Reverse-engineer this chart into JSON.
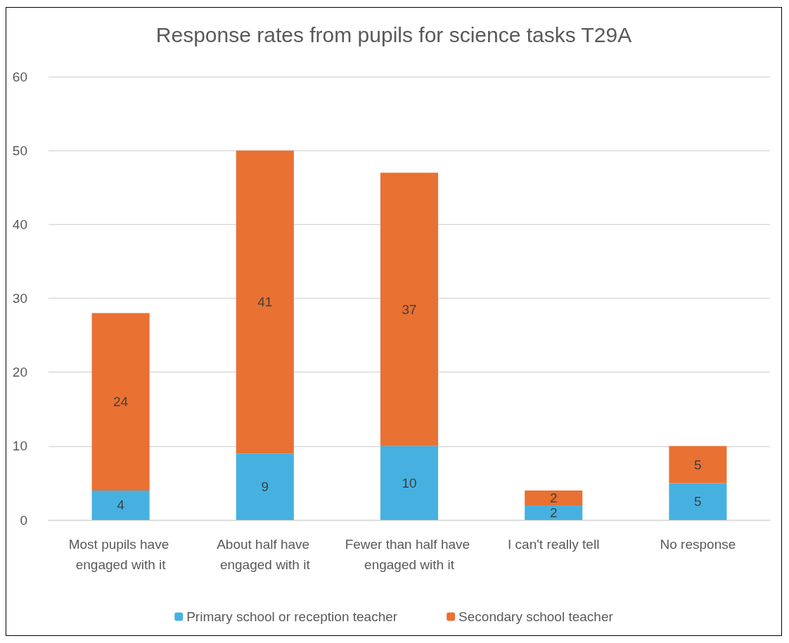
{
  "chart_data": {
    "type": "bar",
    "title": "Response rates from pupils for science tasks T29A",
    "categories": [
      "Most pupils have engaged with it",
      "About half have engaged with it",
      "Fewer than half have engaged with it",
      "I can't really tell",
      "No response"
    ],
    "series": [
      {
        "name": "Primary school or reception teacher",
        "color": "#46b1e1",
        "values": [
          4,
          9,
          10,
          2,
          5
        ]
      },
      {
        "name": "Secondary school teacher",
        "color": "#e97132",
        "values": [
          24,
          41,
          37,
          2,
          5
        ]
      }
    ],
    "stacked": true,
    "data_labels": true,
    "ylim": [
      0,
      60
    ],
    "yticks": [
      0,
      10,
      20,
      30,
      40,
      50,
      60
    ],
    "grid": "y",
    "legend": "bottom"
  }
}
